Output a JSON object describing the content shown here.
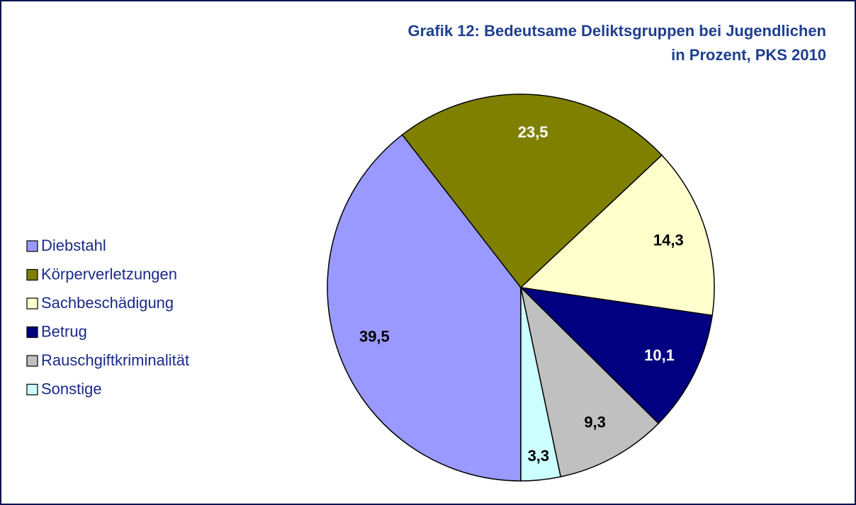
{
  "chart_data": {
    "type": "pie",
    "title": [
      "Grafik 12: Bedeutsame Deliktsgruppen bei Jugendlichen",
      "in Prozent, PKS 2010"
    ],
    "categories": [
      "Diebstahl",
      "Körperverletzungen",
      "Sachbeschädigung",
      "Betrug",
      "Rauschgiftkriminalität",
      "Sonstige"
    ],
    "values": [
      39.5,
      23.5,
      14.3,
      10.1,
      9.3,
      3.3
    ],
    "value_labels": [
      "39,5",
      "23,5",
      "14,3",
      "10,1",
      "9,3",
      "3,3"
    ],
    "colors": [
      "#9999ff",
      "#808000",
      "#ffffcc",
      "#000080",
      "#c0c0c0",
      "#ccffff"
    ],
    "legend": "left"
  }
}
